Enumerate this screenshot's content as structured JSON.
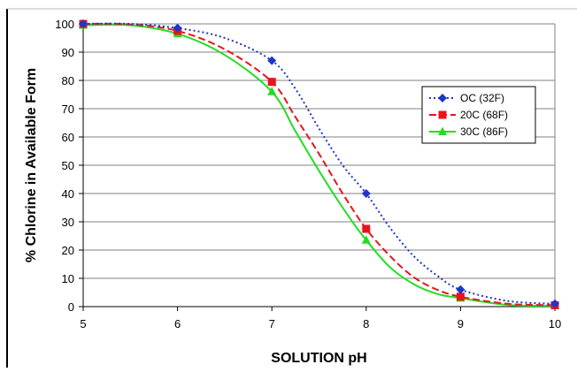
{
  "chart_data": {
    "type": "line",
    "title": "",
    "xlabel": "SOLUTION pH",
    "ylabel": "% Chlorine in Available Form",
    "xlim": [
      5,
      10
    ],
    "ylim": [
      0,
      100
    ],
    "xticks": [
      5,
      6,
      7,
      8,
      9,
      10
    ],
    "yticks": [
      0,
      10,
      20,
      30,
      40,
      50,
      60,
      70,
      80,
      90,
      100
    ],
    "grid": "horizontal",
    "legend_position": "right",
    "series": [
      {
        "name": "OC (32F)",
        "color": "#1f35c8",
        "dash": "dotted",
        "marker": "diamond",
        "marker_x": [
          5,
          6,
          7,
          8,
          9,
          10
        ],
        "marker_y": [
          100,
          98.5,
          87,
          40,
          6,
          1
        ],
        "x": [
          5,
          5.5,
          6,
          6.5,
          7,
          7.25,
          7.5,
          7.75,
          8,
          8.25,
          8.5,
          8.75,
          9,
          9.5,
          10
        ],
        "y": [
          100,
          100,
          98.5,
          95,
          87,
          77,
          63,
          50,
          40,
          28,
          18,
          11,
          6,
          2,
          1
        ]
      },
      {
        "name": "20C (68F)",
        "color": "#e8141c",
        "dash": "dashed",
        "marker": "square",
        "marker_x": [
          5,
          6,
          7,
          8,
          9,
          10
        ],
        "marker_y": [
          100,
          97.5,
          79.5,
          27.5,
          3.5,
          0.5
        ],
        "x": [
          5,
          5.5,
          6,
          6.5,
          7,
          7.25,
          7.5,
          7.75,
          8,
          8.25,
          8.5,
          8.75,
          9,
          9.5,
          10
        ],
        "y": [
          100,
          99.8,
          97.5,
          91,
          79.5,
          67,
          54,
          40,
          27.5,
          18,
          10.5,
          6,
          3.5,
          1,
          0.5
        ]
      },
      {
        "name": "30C (86F)",
        "color": "#22dd22",
        "dash": "solid",
        "marker": "triangle",
        "marker_x": [
          5,
          6,
          7,
          8,
          9,
          10
        ],
        "marker_y": [
          99.5,
          96.5,
          76,
          23.5,
          3,
          0.3
        ],
        "x": [
          5,
          5.5,
          6,
          6.5,
          7,
          7.25,
          7.5,
          7.75,
          8,
          8.25,
          8.5,
          8.75,
          9,
          9.5,
          10
        ],
        "y": [
          99.5,
          99.5,
          96.5,
          89,
          76,
          62,
          48,
          35,
          23.5,
          14,
          8,
          4.5,
          3,
          0.6,
          0.3
        ]
      }
    ]
  }
}
